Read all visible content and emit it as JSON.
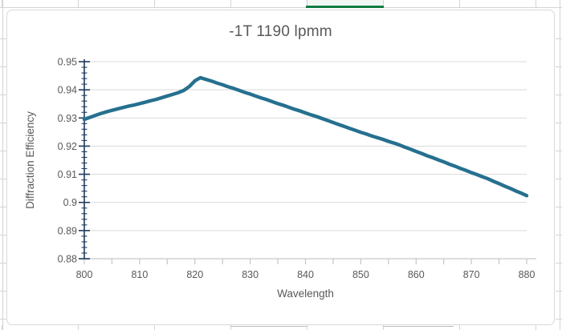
{
  "app": {
    "kind": "spreadsheet-with-embedded-chart",
    "colors": {
      "sheet_gridline": "#d4d4d4",
      "selection_underline": "#107c41",
      "chart_border": "#d9d9d9",
      "plot_gridline": "#d9d9d9",
      "axis_gray": "#c6c6c6",
      "axis_navy": "#1f3a5f",
      "label_text": "#595959",
      "series_line": "#26708f"
    }
  },
  "chart_data": {
    "type": "line",
    "title": "-1T 1190 lpmm",
    "xlabel": "Wavelength",
    "ylabel": "Diffraction Efficiency",
    "xlim": [
      800,
      880
    ],
    "ylim": [
      0.88,
      0.95
    ],
    "grid": "horizontal",
    "legend_position": "none",
    "x_major_ticks": [
      800,
      810,
      820,
      830,
      840,
      850,
      860,
      870,
      880
    ],
    "x_tick_labels": [
      "800",
      "810",
      "820",
      "830",
      "840",
      "850",
      "860",
      "870",
      "880"
    ],
    "x_minor_step": 5,
    "y_major_ticks": [
      0.88,
      0.89,
      0.9,
      0.91,
      0.92,
      0.93,
      0.94,
      0.95
    ],
    "y_tick_labels": [
      "0.88",
      "0.89",
      "0.9",
      "0.91",
      "0.92",
      "0.93",
      "0.94",
      "0.95"
    ],
    "y_minor_step": 0.002,
    "series": [
      {
        "name": "-1T 1190 lpmm",
        "color": "#26708f",
        "x": [
          800,
          801,
          802,
          803,
          804,
          805,
          806,
          807,
          808,
          809,
          810,
          811,
          812,
          813,
          814,
          815,
          816,
          817,
          818,
          819,
          820,
          821,
          822,
          823,
          824,
          825,
          826,
          827,
          828,
          829,
          830,
          831,
          832,
          833,
          834,
          835,
          836,
          837,
          838,
          839,
          840,
          841,
          842,
          843,
          844,
          845,
          846,
          847,
          848,
          849,
          850,
          851,
          852,
          853,
          854,
          855,
          856,
          857,
          858,
          859,
          860,
          861,
          862,
          863,
          864,
          865,
          866,
          867,
          868,
          869,
          870,
          871,
          872,
          873,
          874,
          875,
          876,
          877,
          878,
          879,
          880
        ],
        "y": [
          0.9295,
          0.9302,
          0.9309,
          0.9316,
          0.9322,
          0.9327,
          0.9332,
          0.9337,
          0.9342,
          0.9346,
          0.9351,
          0.9356,
          0.9361,
          0.9366,
          0.9372,
          0.9378,
          0.9384,
          0.939,
          0.9398,
          0.9412,
          0.9432,
          0.9443,
          0.9437,
          0.9431,
          0.9424,
          0.9418,
          0.9411,
          0.9405,
          0.9398,
          0.9391,
          0.9385,
          0.9378,
          0.9371,
          0.9365,
          0.9358,
          0.9351,
          0.9345,
          0.9338,
          0.9331,
          0.9325,
          0.9318,
          0.9311,
          0.9305,
          0.9298,
          0.9291,
          0.9284,
          0.9277,
          0.927,
          0.9263,
          0.9256,
          0.9249,
          0.9243,
          0.9236,
          0.923,
          0.9224,
          0.9217,
          0.9211,
          0.9204,
          0.9196,
          0.9189,
          0.9181,
          0.9174,
          0.9166,
          0.9159,
          0.9151,
          0.9144,
          0.9136,
          0.9129,
          0.9121,
          0.9114,
          0.9106,
          0.9099,
          0.9091,
          0.9084,
          0.9075,
          0.9067,
          0.9058,
          0.905,
          0.9041,
          0.9033,
          0.9024
        ]
      }
    ]
  }
}
